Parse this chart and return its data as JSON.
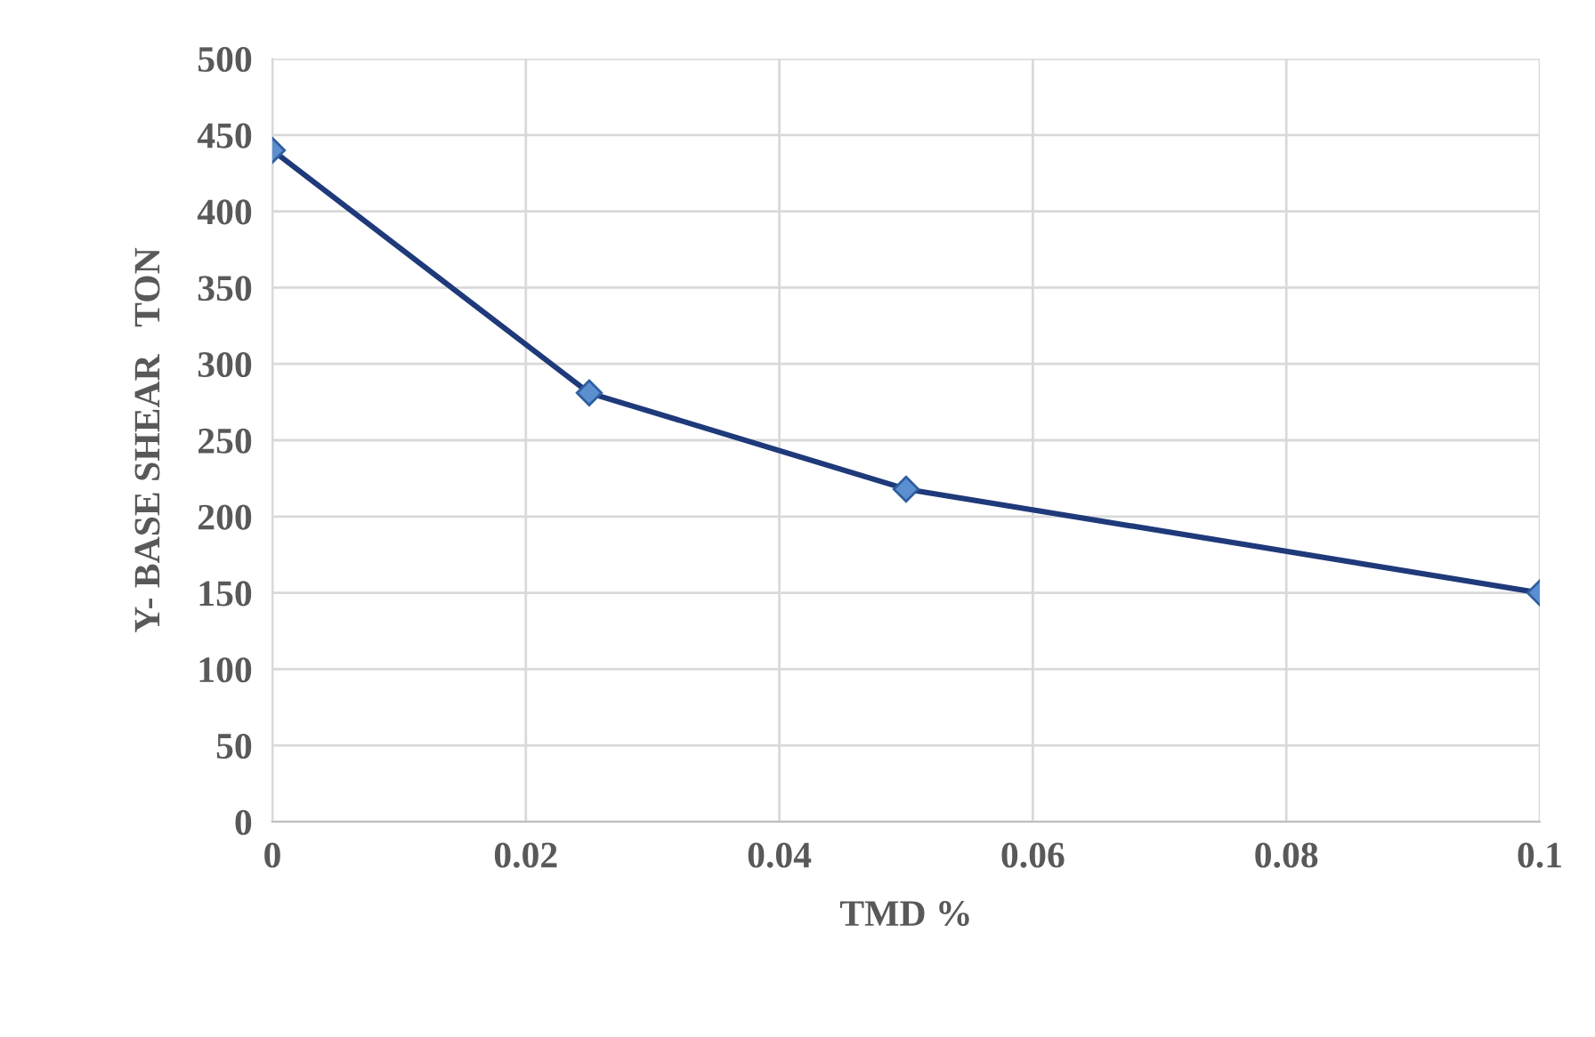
{
  "chart_data": {
    "type": "line",
    "xlabel": "TMD %",
    "ylabel": "Y- BASE SHEAR   TON",
    "x": [
      0,
      0.025,
      0.05,
      0.1
    ],
    "series": [
      {
        "color": "#1f3a7a",
        "values": [
          440,
          281,
          218,
          150
        ]
      }
    ],
    "xlim": [
      0,
      0.1
    ],
    "xticks": [
      0,
      0.02,
      0.04,
      0.06,
      0.08,
      0.1
    ],
    "ylim": [
      0,
      500
    ],
    "yticks": [
      0,
      50,
      100,
      150,
      200,
      250,
      300,
      350,
      400,
      450,
      500
    ],
    "grid": true,
    "marker": "diamond",
    "line_style": "solid"
  }
}
